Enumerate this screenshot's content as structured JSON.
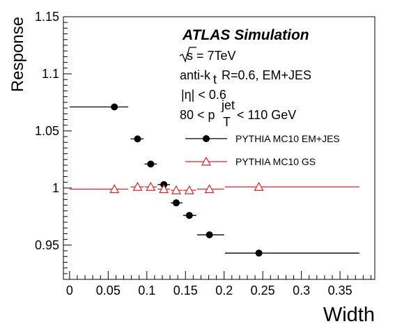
{
  "chart_data": {
    "type": "scatter",
    "xlabel": "Width",
    "ylabel": "Response",
    "xlim": [
      -0.008,
      0.395
    ],
    "ylim": [
      0.92,
      1.15
    ],
    "x_ticks": [
      0,
      0.05,
      0.1,
      0.15,
      0.2,
      0.25,
      0.3,
      0.35
    ],
    "x_tick_labels": [
      "0",
      "0.05",
      "0.1",
      "0.15",
      "0.2",
      "0.25",
      "0.3",
      "0.35"
    ],
    "y_ticks": [
      0.95,
      1,
      1.05,
      1.1,
      1.15
    ],
    "y_tick_labels": [
      "0.95",
      "1",
      "1.05",
      "1.1",
      "1.15"
    ],
    "grid": false,
    "legend_position": "right",
    "annotations": {
      "title": "ATLAS Simulation",
      "energy": "√s = 7TeV",
      "jet_algo": "anti-k t R=0.6, EM+JES",
      "eta_cut": "|η| < 0.6",
      "pt_range": "80 < p T jet < 110 GeV"
    },
    "series": [
      {
        "name": "PYTHIA MC10 EM+JES",
        "color": "#000000",
        "marker": "filled-circle",
        "points": [
          {
            "x": 0.058,
            "y": 1.071,
            "xlo": 0.0,
            "xhi": 0.076
          },
          {
            "x": 0.088,
            "y": 1.043,
            "xlo": 0.079,
            "xhi": 0.096
          },
          {
            "x": 0.105,
            "y": 1.021,
            "xlo": 0.097,
            "xhi": 0.113
          },
          {
            "x": 0.122,
            "y": 1.003,
            "xlo": 0.114,
            "xhi": 0.13
          },
          {
            "x": 0.138,
            "y": 0.987,
            "xlo": 0.131,
            "xhi": 0.146
          },
          {
            "x": 0.155,
            "y": 0.976,
            "xlo": 0.147,
            "xhi": 0.164
          },
          {
            "x": 0.181,
            "y": 0.959,
            "xlo": 0.165,
            "xhi": 0.2
          },
          {
            "x": 0.245,
            "y": 0.943,
            "xlo": 0.201,
            "xhi": 0.375
          }
        ]
      },
      {
        "name": "PYTHIA MC10 GS",
        "color": "#e0222a",
        "marker": "open-triangle",
        "points": [
          {
            "x": 0.058,
            "y": 0.999,
            "xlo": 0.0,
            "xhi": 0.076
          },
          {
            "x": 0.088,
            "y": 1.001,
            "xlo": 0.079,
            "xhi": 0.096
          },
          {
            "x": 0.105,
            "y": 1.001,
            "xlo": 0.097,
            "xhi": 0.113
          },
          {
            "x": 0.122,
            "y": 0.999,
            "xlo": 0.114,
            "xhi": 0.13
          },
          {
            "x": 0.138,
            "y": 0.998,
            "xlo": 0.131,
            "xhi": 0.146
          },
          {
            "x": 0.155,
            "y": 0.998,
            "xlo": 0.147,
            "xhi": 0.164
          },
          {
            "x": 0.181,
            "y": 0.999,
            "xlo": 0.165,
            "xhi": 0.2
          },
          {
            "x": 0.245,
            "y": 1.001,
            "xlo": 0.201,
            "xhi": 0.375
          }
        ]
      }
    ]
  }
}
